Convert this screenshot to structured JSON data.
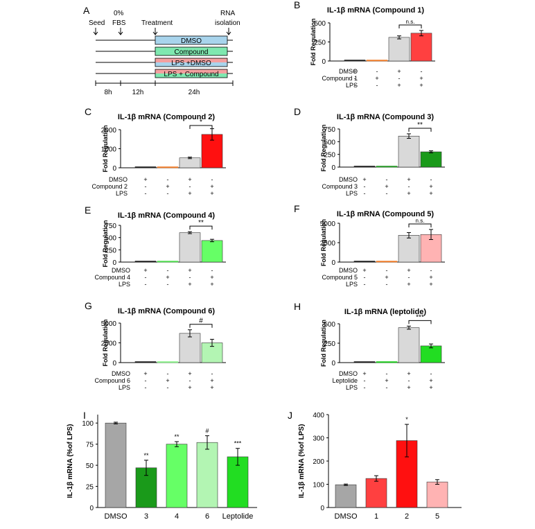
{
  "panel_a": {
    "letter": "A",
    "events": [
      "Seed",
      "0%",
      "FBS",
      "Treatment",
      "RNA",
      "isolation"
    ],
    "conditions": [
      "DMSO",
      "Compound",
      "LPS +DMSO",
      "LPS + Compound"
    ],
    "durations": [
      "8h",
      "12h",
      "24h"
    ],
    "colors": [
      "#a8d4ec",
      "#7fe8b0",
      "#f4a0a0",
      "#7fe8b0"
    ]
  },
  "chart_data": [
    {
      "id": "B",
      "letter": "B",
      "type": "bar",
      "title": "IL-1β mRNA (Compound 1)",
      "ylabel": "Fold Regulation",
      "ylim": [
        0,
        500
      ],
      "ticks": [
        "0",
        "250",
        "500"
      ],
      "values": [
        2,
        3,
        310,
        365
      ],
      "errors": [
        1,
        1,
        20,
        35
      ],
      "colors": [
        "#222222",
        "#f08030",
        "#d9d9d9",
        "#ff4040"
      ],
      "sig": "n.s.",
      "rows": [
        {
          "label": "DMSO",
          "marks": [
            "+",
            "-",
            "+",
            "-"
          ]
        },
        {
          "label": "Compound 1",
          "marks": [
            "-",
            "+",
            "-",
            "+"
          ]
        },
        {
          "label": "LPS",
          "marks": [
            "-",
            "-",
            "+",
            "+"
          ]
        }
      ]
    },
    {
      "id": "C",
      "letter": "C",
      "type": "bar",
      "title": "IL-1β mRNA (Compound 2)",
      "ylabel": "Fold Regulation",
      "ylim": [
        0,
        2000
      ],
      "ticks": [
        "0",
        "1000",
        "2000"
      ],
      "values": [
        30,
        5,
        520,
        1750
      ],
      "errors": [
        5,
        2,
        40,
        300
      ],
      "colors": [
        "#222222",
        "#f08030",
        "#d9d9d9",
        "#ff1010"
      ],
      "sig": "*",
      "rows": [
        {
          "label": "DMSO",
          "marks": [
            "+",
            "-",
            "+",
            "-"
          ]
        },
        {
          "label": "Compound 2",
          "marks": [
            "-",
            "+",
            "-",
            "+"
          ]
        },
        {
          "label": "LPS",
          "marks": [
            "-",
            "-",
            "+",
            "+"
          ]
        }
      ]
    },
    {
      "id": "D",
      "letter": "D",
      "type": "bar",
      "title": "IL-1β mRNA (Compound 3)",
      "ylabel": "Fold Regulation",
      "ylim": [
        0,
        750
      ],
      "ticks": [
        "0",
        "250",
        "500",
        "750"
      ],
      "values": [
        4,
        4,
        610,
        300
      ],
      "errors": [
        1,
        1,
        45,
        20
      ],
      "colors": [
        "#222222",
        "#2a9a2a",
        "#d9d9d9",
        "#1a9a1a"
      ],
      "sig": "**",
      "rows": [
        {
          "label": "DMSO",
          "marks": [
            "+",
            "-",
            "+",
            "-"
          ]
        },
        {
          "label": "Compound 3",
          "marks": [
            "-",
            "+",
            "-",
            "+"
          ]
        },
        {
          "label": "LPS",
          "marks": [
            "-",
            "-",
            "+",
            "+"
          ]
        }
      ]
    },
    {
      "id": "E",
      "letter": "E",
      "type": "bar",
      "title": "IL-1β mRNA (Compound 4)",
      "ylabel": "Fold Regulation",
      "ylim": [
        0,
        750
      ],
      "ticks": [
        "0",
        "250",
        "500",
        "750"
      ],
      "values": [
        4,
        4,
        600,
        440
      ],
      "errors": [
        1,
        1,
        20,
        25
      ],
      "colors": [
        "#222222",
        "#55dd55",
        "#d9d9d9",
        "#66ff66"
      ],
      "sig": "**",
      "rows": [
        {
          "label": "DMSO",
          "marks": [
            "+",
            "-",
            "+",
            "-"
          ]
        },
        {
          "label": "Compound 4",
          "marks": [
            "-",
            "+",
            "-",
            "+"
          ]
        },
        {
          "label": "LPS",
          "marks": [
            "-",
            "-",
            "+",
            "+"
          ]
        }
      ]
    },
    {
      "id": "F",
      "letter": "F",
      "type": "bar",
      "title": "IL-1β mRNA (Compound 5)",
      "ylabel": "Fold Regulation",
      "ylim": [
        0,
        5000
      ],
      "ticks": [
        "0",
        "2500",
        "5000"
      ],
      "values": [
        60,
        40,
        3450,
        3550
      ],
      "errors": [
        10,
        10,
        350,
        650
      ],
      "colors": [
        "#222222",
        "#f08030",
        "#d9d9d9",
        "#ffb3b3"
      ],
      "sig": "n.s.",
      "rows": [
        {
          "label": "DMSO",
          "marks": [
            "+",
            "-",
            "+",
            "-"
          ]
        },
        {
          "label": "Compound 5",
          "marks": [
            "-",
            "+",
            "-",
            "+"
          ]
        },
        {
          "label": "LPS",
          "marks": [
            "-",
            "-",
            "+",
            "+"
          ]
        }
      ]
    },
    {
      "id": "G",
      "letter": "G",
      "type": "bar",
      "title": "IL-1β mRNA (Compound 6)",
      "ylabel": "Fold Regulation",
      "ylim": [
        0,
        5000
      ],
      "ticks": [
        "0",
        "2500",
        "5000"
      ],
      "values": [
        40,
        40,
        3700,
        2500
      ],
      "errors": [
        10,
        10,
        450,
        450
      ],
      "colors": [
        "#222222",
        "#88ee88",
        "#d9d9d9",
        "#b3f5b3"
      ],
      "sig": "#",
      "rows": [
        {
          "label": "DMSO",
          "marks": [
            "+",
            "-",
            "+",
            "-"
          ]
        },
        {
          "label": "Compound 6",
          "marks": [
            "-",
            "+",
            "-",
            "+"
          ]
        },
        {
          "label": "LPS",
          "marks": [
            "-",
            "-",
            "+",
            "+"
          ]
        }
      ]
    },
    {
      "id": "H",
      "letter": "H",
      "type": "bar",
      "title": "IL-1β mRNA (leptolide)",
      "ylabel": "Fold Regulation",
      "ylim": [
        0,
        500
      ],
      "ticks": [
        "0",
        "250",
        "500"
      ],
      "values": [
        3,
        3,
        450,
        215
      ],
      "errors": [
        1,
        1,
        20,
        25
      ],
      "colors": [
        "#222222",
        "#22cc22",
        "#d9d9d9",
        "#22dd22"
      ],
      "sig": "***",
      "rows": [
        {
          "label": "DMSO",
          "marks": [
            "+",
            "-",
            "+",
            "-"
          ]
        },
        {
          "label": "Leptolide",
          "marks": [
            "-",
            "+",
            "-",
            "+"
          ]
        },
        {
          "label": "LPS",
          "marks": [
            "-",
            "-",
            "+",
            "+"
          ]
        }
      ]
    },
    {
      "id": "I",
      "letter": "I",
      "type": "bar",
      "title": "",
      "ylabel": "IL-1β mRNA (%of LPS)",
      "xlabel": "",
      "ylim": [
        0,
        110
      ],
      "ticks": [
        "0",
        "25",
        "50",
        "75",
        "100"
      ],
      "tickvals": [
        0,
        25,
        50,
        75,
        100
      ],
      "categories": [
        "DMSO",
        "3",
        "4",
        "6",
        "Leptolide"
      ],
      "values": [
        100,
        47,
        75,
        77,
        60
      ],
      "errors": [
        1,
        9,
        3,
        8,
        10
      ],
      "colors": [
        "#a6a6a6",
        "#1a9a1a",
        "#66ff66",
        "#b3f5b3",
        "#22dd22"
      ],
      "sigs": [
        "",
        "**",
        "**",
        "#",
        "***"
      ]
    },
    {
      "id": "J",
      "letter": "J",
      "type": "bar",
      "title": "",
      "ylabel": "IL-1β mRNA (%of LPS)",
      "xlabel": "",
      "ylim": [
        0,
        400
      ],
      "ticks": [
        "0",
        "100",
        "200",
        "300",
        "400"
      ],
      "tickvals": [
        0,
        100,
        200,
        300,
        400
      ],
      "categories": [
        "DMSO",
        "1",
        "2",
        "5"
      ],
      "values": [
        98,
        125,
        288,
        110
      ],
      "errors": [
        3,
        12,
        70,
        10
      ],
      "colors": [
        "#a6a6a6",
        "#ff4040",
        "#ff1010",
        "#ffb3b3"
      ],
      "sigs": [
        "",
        "",
        "*",
        ""
      ]
    }
  ]
}
